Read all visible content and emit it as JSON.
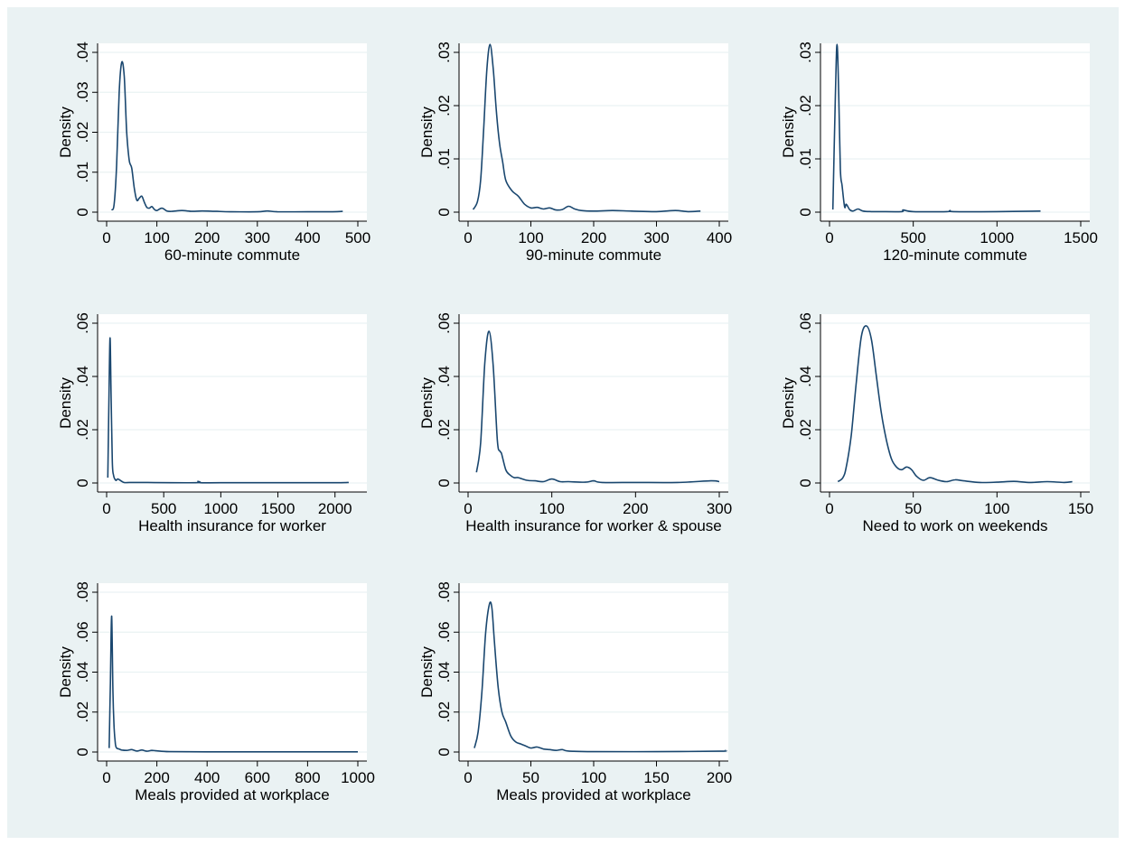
{
  "colors": {
    "background": "#eaf2f3",
    "plot_area": "#ffffff",
    "gridline": "#eaf2f3",
    "line": "#1a476f",
    "axis": "#000000"
  },
  "chart_data": [
    {
      "type": "line",
      "xlabel": "60-minute commute",
      "ylabel": "Density",
      "xlim": [
        0,
        500
      ],
      "ylim": [
        0,
        0.04
      ],
      "xticks": [
        0,
        100,
        200,
        300,
        400,
        500
      ],
      "yticks": [
        0,
        0.01,
        0.02,
        0.03,
        0.04
      ],
      "xtick_labels": [
        "0",
        "100",
        "200",
        "300",
        "400",
        "500"
      ],
      "ytick_labels": [
        "0",
        ".01",
        ".02",
        ".03",
        ".04"
      ],
      "grid": true,
      "series": [
        {
          "x": [
            10,
            15,
            20,
            25,
            30,
            35,
            40,
            45,
            50,
            55,
            60,
            65,
            70,
            75,
            80,
            85,
            90,
            95,
            100,
            110,
            120,
            130,
            150,
            170,
            190,
            220,
            250,
            300,
            320,
            340,
            400,
            450,
            470
          ],
          "y": [
            0.0005,
            0.002,
            0.012,
            0.03,
            0.0375,
            0.034,
            0.02,
            0.013,
            0.011,
            0.006,
            0.003,
            0.0035,
            0.004,
            0.0025,
            0.0012,
            0.001,
            0.0014,
            0.0007,
            0.0004,
            0.001,
            0.0003,
            0.0002,
            0.0004,
            0.0002,
            0.0003,
            0.0002,
            0.0001,
            0.0001,
            0.0003,
            0.0001,
            0.0001,
            0.0001,
            0.0002
          ]
        }
      ]
    },
    {
      "type": "line",
      "xlabel": "90-minute commute",
      "ylabel": "Density",
      "xlim": [
        0,
        400
      ],
      "ylim": [
        0,
        0.03
      ],
      "xticks": [
        0,
        100,
        200,
        300,
        400
      ],
      "yticks": [
        0,
        0.01,
        0.02,
        0.03
      ],
      "xtick_labels": [
        "0",
        "100",
        "200",
        "300",
        "400"
      ],
      "ytick_labels": [
        "0",
        ".01",
        ".02",
        ".03"
      ],
      "grid": true,
      "series": [
        {
          "x": [
            8,
            15,
            20,
            25,
            30,
            35,
            40,
            45,
            50,
            55,
            60,
            70,
            80,
            90,
            100,
            110,
            120,
            130,
            140,
            150,
            160,
            170,
            180,
            200,
            230,
            260,
            300,
            330,
            350,
            370
          ],
          "y": [
            0.0005,
            0.002,
            0.006,
            0.016,
            0.027,
            0.0315,
            0.027,
            0.019,
            0.013,
            0.0095,
            0.006,
            0.004,
            0.003,
            0.0015,
            0.0008,
            0.0009,
            0.0006,
            0.0008,
            0.0004,
            0.0005,
            0.0011,
            0.0006,
            0.0003,
            0.0002,
            0.0003,
            0.0002,
            0.0001,
            0.0003,
            0.0001,
            0.0002
          ]
        }
      ]
    },
    {
      "type": "line",
      "xlabel": "120-minute commute",
      "ylabel": "Density",
      "xlim": [
        0,
        1500
      ],
      "ylim": [
        0,
        0.03
      ],
      "xticks": [
        0,
        500,
        1000,
        1500
      ],
      "yticks": [
        0,
        0.01,
        0.02,
        0.03
      ],
      "xtick_labels": [
        "0",
        "500",
        "1000",
        "1500"
      ],
      "ytick_labels": [
        "0",
        ".01",
        ".02",
        ".03"
      ],
      "grid": true,
      "series": [
        {
          "x": [
            20,
            35,
            45,
            55,
            65,
            75,
            90,
            100,
            120,
            140,
            170,
            200,
            250,
            300,
            430,
            440,
            500,
            700,
            720,
            740,
            1000,
            1260
          ],
          "y": [
            0.0005,
            0.022,
            0.0315,
            0.022,
            0.008,
            0.005,
            0.001,
            0.0015,
            0.0005,
            0.0002,
            0.0006,
            0.0002,
            0.0001,
            0.0001,
            0.0001,
            0.0004,
            0.0001,
            0.0001,
            0.0003,
            0.0001,
            0.0001,
            0.0002
          ]
        }
      ]
    },
    {
      "type": "line",
      "xlabel": "Health insurance for worker",
      "ylabel": "Density",
      "xlim": [
        0,
        2200
      ],
      "ylim": [
        0,
        0.06
      ],
      "xticks": [
        0,
        500,
        1000,
        1500,
        2000
      ],
      "yticks": [
        0,
        0.02,
        0.04,
        0.06
      ],
      "xtick_labels": [
        "0",
        "500",
        "1000",
        "1500",
        "2000"
      ],
      "ytick_labels": [
        "0",
        ".02",
        ".04",
        ".06"
      ],
      "grid": true,
      "series": [
        {
          "x": [
            10,
            20,
            30,
            40,
            50,
            60,
            80,
            100,
            150,
            200,
            300,
            780,
            800,
            820,
            1000,
            1500,
            2000,
            2120
          ],
          "y": [
            0.002,
            0.03,
            0.0545,
            0.03,
            0.008,
            0.003,
            0.001,
            0.0015,
            0.0002,
            0.0002,
            0.0002,
            0.0001,
            0.0006,
            0.0001,
            0.0001,
            0.0001,
            0.0001,
            0.0002
          ]
        }
      ]
    },
    {
      "type": "line",
      "xlabel": "Health insurance for worker & spouse",
      "ylabel": "Density",
      "xlim": [
        0,
        300
      ],
      "ylim": [
        0,
        0.06
      ],
      "xticks": [
        0,
        100,
        200,
        300
      ],
      "yticks": [
        0,
        0.02,
        0.04,
        0.06
      ],
      "xtick_labels": [
        "0",
        "100",
        "200",
        "300"
      ],
      "ytick_labels": [
        "0",
        ".02",
        ".04",
        ".06"
      ],
      "grid": true,
      "series": [
        {
          "x": [
            10,
            15,
            20,
            25,
            30,
            35,
            38,
            40,
            45,
            50,
            55,
            60,
            70,
            80,
            90,
            100,
            110,
            120,
            140,
            150,
            160,
            200,
            250,
            290,
            300
          ],
          "y": [
            0.004,
            0.015,
            0.045,
            0.057,
            0.044,
            0.016,
            0.012,
            0.011,
            0.005,
            0.003,
            0.002,
            0.002,
            0.001,
            0.0008,
            0.0005,
            0.0015,
            0.0005,
            0.0005,
            0.0003,
            0.0008,
            0.0002,
            0.0002,
            0.0002,
            0.0008,
            0.0005
          ]
        }
      ]
    },
    {
      "type": "line",
      "xlabel": "Need to work on weekends",
      "ylabel": "Density",
      "xlim": [
        0,
        150
      ],
      "ylim": [
        0,
        0.06
      ],
      "xticks": [
        0,
        50,
        100,
        150
      ],
      "yticks": [
        0,
        0.02,
        0.04,
        0.06
      ],
      "xtick_labels": [
        "0",
        "50",
        "100",
        "150"
      ],
      "ytick_labels": [
        "0",
        ".02",
        ".04",
        ".06"
      ],
      "grid": true,
      "series": [
        {
          "x": [
            5,
            8,
            10,
            13,
            16,
            19,
            22,
            25,
            28,
            31,
            34,
            37,
            40,
            43,
            46,
            49,
            52,
            56,
            60,
            65,
            70,
            75,
            80,
            90,
            100,
            110,
            120,
            130,
            140,
            145
          ],
          "y": [
            0.0005,
            0.002,
            0.006,
            0.018,
            0.038,
            0.055,
            0.059,
            0.054,
            0.04,
            0.026,
            0.016,
            0.009,
            0.006,
            0.005,
            0.006,
            0.005,
            0.0025,
            0.001,
            0.002,
            0.001,
            0.0005,
            0.0012,
            0.0008,
            0.0002,
            0.0003,
            0.0006,
            0.0002,
            0.0005,
            0.0002,
            0.0005
          ]
        }
      ]
    },
    {
      "type": "line",
      "xlabel": "Meals provided at workplace",
      "ylabel": "Density",
      "xlim": [
        0,
        1000
      ],
      "ylim": [
        0,
        0.08
      ],
      "xticks": [
        0,
        200,
        400,
        600,
        800,
        1000
      ],
      "yticks": [
        0,
        0.02,
        0.04,
        0.06,
        0.08
      ],
      "xtick_labels": [
        "0",
        "200",
        "400",
        "600",
        "800",
        "1000"
      ],
      "ytick_labels": [
        "0",
        ".02",
        ".04",
        ".06",
        ".08"
      ],
      "grid": true,
      "series": [
        {
          "x": [
            10,
            15,
            20,
            25,
            30,
            35,
            40,
            50,
            60,
            80,
            100,
            120,
            140,
            160,
            180,
            200,
            250,
            400,
            600,
            800,
            1000
          ],
          "y": [
            0.002,
            0.035,
            0.068,
            0.03,
            0.012,
            0.004,
            0.002,
            0.0015,
            0.001,
            0.0008,
            0.0012,
            0.0005,
            0.001,
            0.0004,
            0.0008,
            0.0006,
            0.0002,
            0.0001,
            0.0001,
            0.0001,
            0.0001
          ]
        }
      ]
    },
    {
      "type": "line",
      "xlabel": "Meals provided at workplace",
      "ylabel": "Density",
      "xlim": [
        0,
        200
      ],
      "ylim": [
        0,
        0.08
      ],
      "xticks": [
        0,
        50,
        100,
        150,
        200
      ],
      "yticks": [
        0,
        0.02,
        0.04,
        0.06,
        0.08
      ],
      "xtick_labels": [
        "0",
        "50",
        "100",
        "150",
        "200"
      ],
      "ytick_labels": [
        "0",
        ".02",
        ".04",
        ".06",
        ".08"
      ],
      "grid": true,
      "series": [
        {
          "x": [
            5,
            8,
            11,
            14,
            17,
            19,
            21,
            24,
            27,
            30,
            34,
            38,
            42,
            46,
            50,
            55,
            60,
            65,
            70,
            75,
            80,
            100,
            150,
            200,
            205
          ],
          "y": [
            0.002,
            0.01,
            0.03,
            0.06,
            0.074,
            0.072,
            0.055,
            0.032,
            0.02,
            0.015,
            0.008,
            0.005,
            0.004,
            0.003,
            0.002,
            0.0025,
            0.0015,
            0.0012,
            0.0008,
            0.0012,
            0.0005,
            0.0002,
            0.0002,
            0.0004,
            0.0008
          ]
        }
      ]
    }
  ]
}
